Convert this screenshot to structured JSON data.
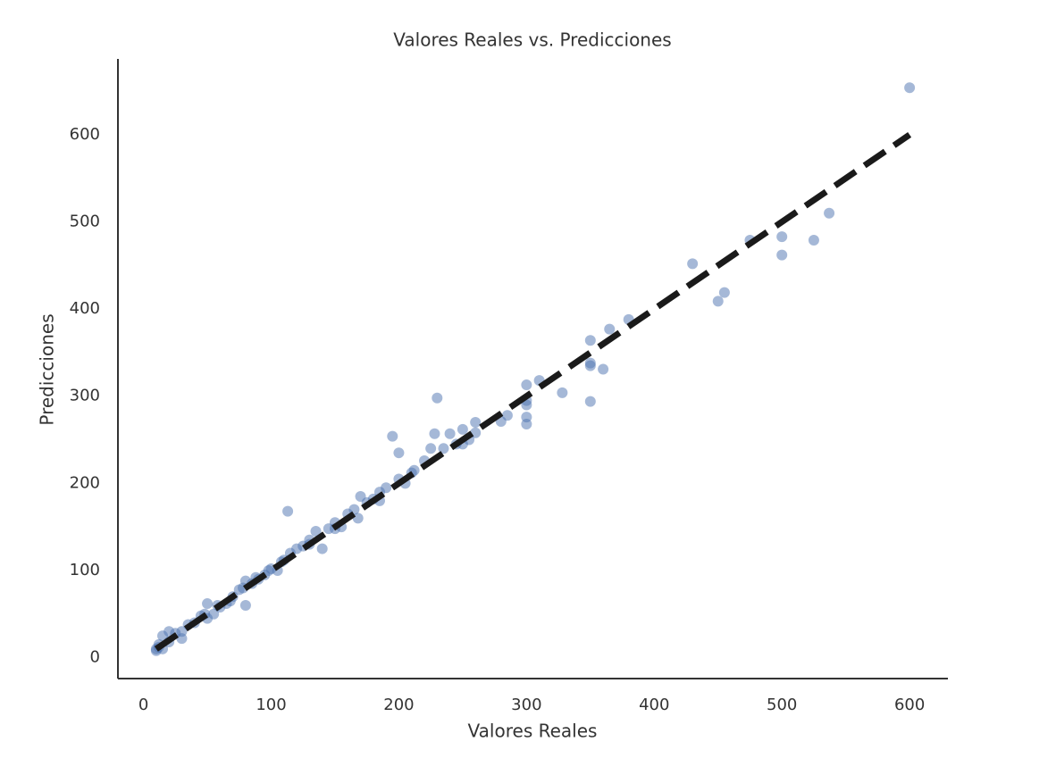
{
  "chart_data": {
    "type": "scatter",
    "title": "Valores Reales vs. Predicciones",
    "x_label": "Valores Reales",
    "y_label": "Predicciones",
    "xlim": [
      -20,
      630
    ],
    "ylim": [
      -24,
      687
    ],
    "xticks": [
      0,
      100,
      200,
      300,
      400,
      500,
      600
    ],
    "yticks": [
      0,
      100,
      200,
      300,
      400,
      500,
      600
    ],
    "grid": false,
    "series": [
      {
        "color": "#4c72b0",
        "opacity": 0.5,
        "x": [
          600,
          537,
          525,
          500,
          500,
          475,
          455,
          450,
          430,
          380,
          365,
          360,
          350,
          350,
          350,
          350,
          328,
          310,
          300,
          300,
          300,
          300,
          300,
          285,
          280,
          260,
          260,
          255,
          250,
          250,
          245,
          240,
          235,
          230,
          228,
          225,
          220,
          212,
          205,
          200,
          195,
          190,
          185,
          180,
          175,
          170,
          168,
          160,
          155,
          150,
          140,
          135,
          130,
          120,
          115,
          113,
          110,
          105,
          100,
          95,
          90,
          85,
          80,
          80,
          75,
          70,
          65,
          60,
          55,
          50,
          50,
          45,
          40,
          35,
          30,
          30,
          25,
          20,
          20,
          15,
          15,
          12,
          10,
          10,
          12,
          125,
          145,
          165,
          185,
          200,
          210,
          150,
          130,
          108,
          98,
          88,
          78,
          68,
          58,
          48
        ],
        "values": [
          654,
          510,
          479,
          483,
          462,
          479,
          419,
          409,
          452,
          388,
          377,
          331,
          364,
          338,
          335,
          294,
          304,
          318,
          313,
          295,
          290,
          276,
          268,
          278,
          271,
          270,
          258,
          250,
          262,
          245,
          245,
          257,
          240,
          298,
          257,
          240,
          226,
          215,
          200,
          235,
          254,
          195,
          190,
          182,
          178,
          185,
          160,
          165,
          150,
          155,
          125,
          145,
          130,
          125,
          120,
          168,
          112,
          100,
          102,
          95,
          90,
          85,
          60,
          88,
          78,
          70,
          62,
          58,
          50,
          62,
          45,
          48,
          40,
          38,
          30,
          22,
          28,
          30,
          18,
          25,
          10,
          12,
          10,
          8,
          15,
          128,
          148,
          170,
          180,
          205,
          212,
          148,
          135,
          110,
          100,
          92,
          80,
          65,
          60,
          50
        ]
      }
    ],
    "reference_line": {
      "x": [
        10,
        600
      ],
      "values": [
        10,
        600
      ],
      "color": "#1a1a1a",
      "dashed": true
    }
  }
}
